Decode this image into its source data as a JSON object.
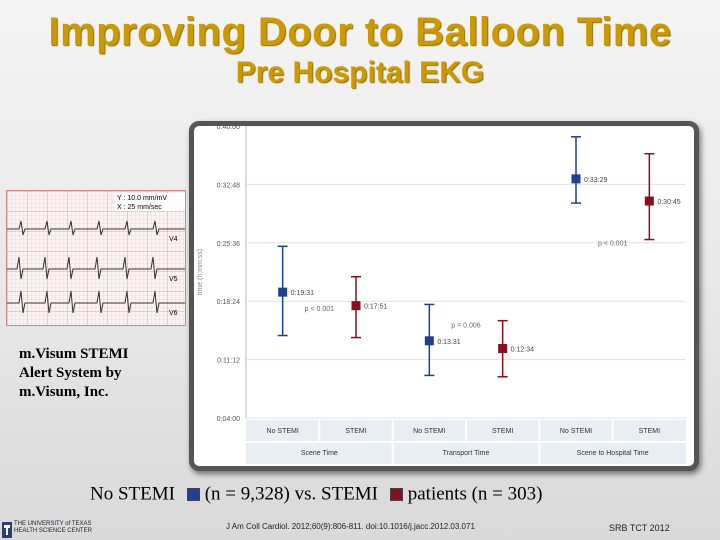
{
  "slide": {
    "title": "Improving Door to Balloon Time",
    "subtitle": "Pre Hospital EKG",
    "caption_lines": [
      "m.Visum STEMI",
      "Alert System by",
      "m.Visum, Inc."
    ],
    "legend": {
      "part1": "No STEMI",
      "part2": "(n = 9,328) vs. STEMI",
      "part3": "patients (n = 303)",
      "colors": {
        "no_stemi": "#1f3f8f",
        "stemi": "#8b0f1a"
      }
    },
    "citation": "J Am Coll Cardiol. 2012;60(9):806-811. doi:10.1016/j.jacc.2012.03.071",
    "footer_right": "SRB TCT 2012",
    "logo_lines": [
      "THE UNIVERSITY of TEXAS",
      "HEALTH SCIENCE CENTER"
    ],
    "ekg_labels": {
      "readout_top": "Y : 10.0 mm/mV",
      "readout_bottom": "X : 25 mm/sec",
      "leads": [
        "V4",
        "V5",
        "V6"
      ]
    }
  },
  "chart_data": {
    "type": "scatter",
    "description_axis": "time (h:mm:ss)",
    "ylabel": "time (h:mm:ss)",
    "yticks": [
      "0:04:00",
      "0:11:12",
      "0:18:24",
      "0:25:36",
      "0:32:48",
      "0:40:00"
    ],
    "ylim_seconds": [
      240,
      2400
    ],
    "groups": [
      {
        "label": "Scene Time",
        "categories": [
          "No STEMI",
          "STEMI"
        ],
        "p_value": "p < 0.001"
      },
      {
        "label": "Transport Time",
        "categories": [
          "No STEMI",
          "STEMI"
        ],
        "p_value": "p = 0.006"
      },
      {
        "label": "Scene to Hospital Time",
        "categories": [
          "No STEMI",
          "STEMI"
        ],
        "p_value": "p < 0.001"
      }
    ],
    "series": [
      {
        "group": 0,
        "category": "No STEMI",
        "mean": "0:19:31",
        "mean_s": 1171,
        "low_s": 850,
        "high_s": 1510
      },
      {
        "group": 0,
        "category": "STEMI",
        "mean": "0:17:51",
        "mean_s": 1071,
        "low_s": 835,
        "high_s": 1285
      },
      {
        "group": 1,
        "category": "No STEMI",
        "mean": "0:13:31",
        "mean_s": 811,
        "low_s": 555,
        "high_s": 1080
      },
      {
        "group": 1,
        "category": "STEMI",
        "mean": "0:12:34",
        "mean_s": 754,
        "low_s": 545,
        "high_s": 960
      },
      {
        "group": 2,
        "category": "No STEMI",
        "mean": "0:33:29",
        "mean_s": 2009,
        "low_s": 1830,
        "high_s": 2320
      },
      {
        "group": 2,
        "category": "STEMI",
        "mean": "0:30:45",
        "mean_s": 1845,
        "low_s": 1560,
        "high_s": 2195
      }
    ]
  }
}
